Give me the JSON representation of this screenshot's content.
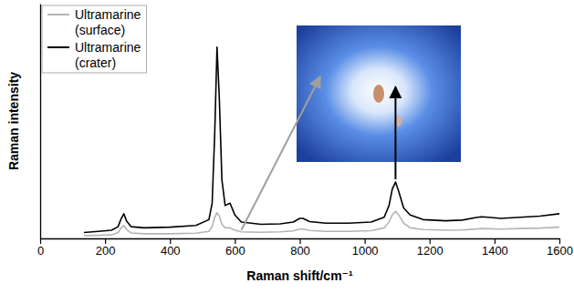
{
  "chart_data": {
    "type": "line",
    "x_label": "Raman shift/cm⁻¹",
    "y_label": "Raman intensity",
    "x": [
      135,
      180,
      220,
      240,
      250,
      258,
      266,
      280,
      320,
      400,
      480,
      520,
      530,
      538,
      545,
      552,
      560,
      570,
      585,
      600,
      620,
      680,
      740,
      780,
      800,
      810,
      830,
      880,
      950,
      1020,
      1060,
      1075,
      1085,
      1095,
      1105,
      1120,
      1140,
      1180,
      1250,
      1300,
      1340,
      1360,
      1380,
      1420,
      1480,
      1540,
      1600
    ],
    "series": [
      {
        "name": "Ultramarine (surface)",
        "color": "#b4b4b4",
        "values": [
          1.2,
          1.3,
          1.5,
          2.5,
          4.5,
          5.5,
          3.8,
          2.3,
          2,
          2,
          2.2,
          3,
          5,
          9,
          11,
          9.5,
          6,
          4.5,
          4.5,
          3.5,
          2.8,
          2.6,
          2.8,
          3.2,
          4,
          4,
          3.4,
          3,
          3,
          3.3,
          4.5,
          7,
          10,
          11.5,
          10,
          6.5,
          4.5,
          3.8,
          3.5,
          3.6,
          4,
          4.2,
          4.1,
          4,
          4.2,
          4.4,
          4.8
        ]
      },
      {
        "name": "Ultramarine (crater)",
        "color": "#000000",
        "values": [
          2.5,
          3,
          3.5,
          5,
          8.5,
          10.5,
          7.5,
          5,
          4.5,
          4.8,
          5.5,
          8,
          15,
          45,
          81.5,
          60,
          25,
          14,
          15,
          10,
          7,
          6,
          6.2,
          7,
          8.5,
          8.5,
          7.2,
          6.5,
          6.5,
          7,
          9,
          14,
          21,
          24,
          20,
          13,
          10,
          8,
          7.5,
          7.8,
          8.8,
          9.2,
          9,
          8.5,
          9,
          9.5,
          10.5
        ]
      }
    ],
    "xlim": [
      0,
      1600
    ],
    "xticks": [
      0,
      200,
      400,
      600,
      800,
      1000,
      1200,
      1400,
      1600
    ],
    "ylim": [
      0,
      100
    ],
    "tick_labels": "x",
    "legend": "upper left",
    "grid": false
  }
}
